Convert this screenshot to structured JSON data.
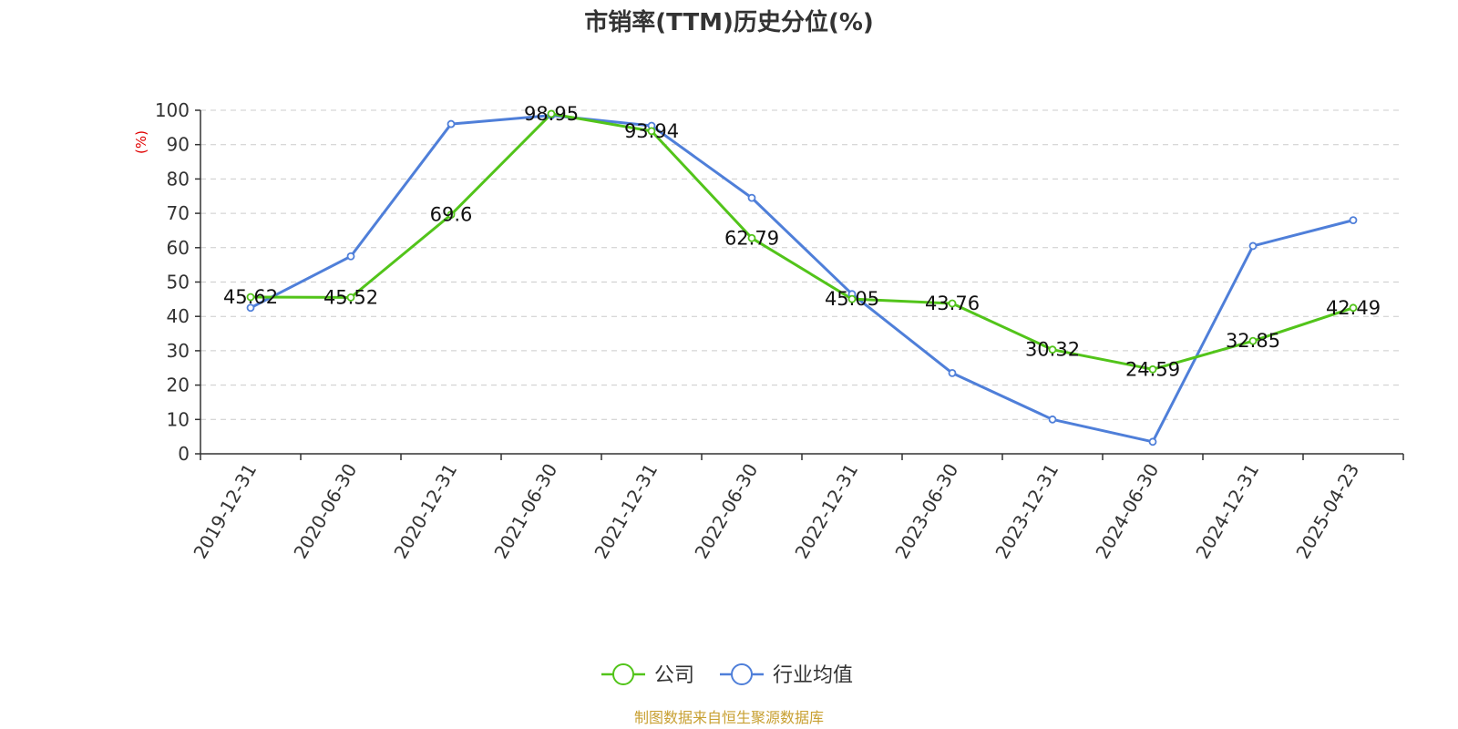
{
  "chart_data": {
    "type": "line",
    "title": "市销率(TTM)历史分位(%)",
    "ylabel": "(%)",
    "ylim": [
      0,
      100
    ],
    "yticks": [
      0,
      10,
      20,
      30,
      40,
      50,
      60,
      70,
      80,
      90,
      100
    ],
    "grid": true,
    "legend_placement": "bottom-center",
    "categories": [
      "2019-12-31",
      "2020-06-30",
      "2020-12-31",
      "2021-06-30",
      "2021-12-31",
      "2022-06-30",
      "2022-12-31",
      "2023-06-30",
      "2023-12-31",
      "2024-06-30",
      "2024-12-31",
      "2025-04-23"
    ],
    "series": [
      {
        "name": "公司",
        "color": "#52c41a",
        "values": [
          45.62,
          45.52,
          69.6,
          98.95,
          93.94,
          62.79,
          45.05,
          43.76,
          30.32,
          24.59,
          32.85,
          42.49
        ],
        "labels": [
          "45.62",
          "45.52",
          "69.6",
          "98.95",
          "93.94",
          "62.79",
          "45.05",
          "43.76",
          "30.32",
          "24.59",
          "32.85",
          "42.49"
        ]
      },
      {
        "name": "行业均值",
        "color": "#4f7fd9",
        "values": [
          42.5,
          57.5,
          96.0,
          98.5,
          95.5,
          74.5,
          46.5,
          23.5,
          10.0,
          3.5,
          60.5,
          68.0
        ]
      }
    ],
    "source": "制图数据来自恒生聚源数据库"
  }
}
